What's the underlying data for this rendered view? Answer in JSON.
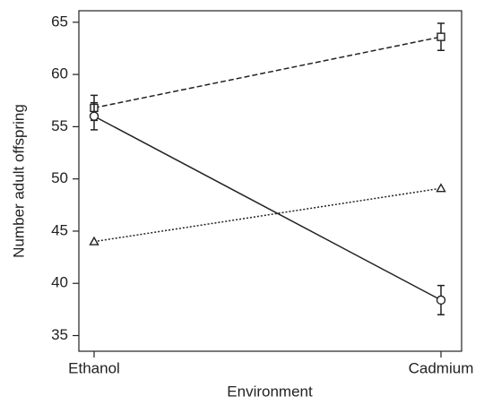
{
  "chart_data": {
    "type": "line",
    "x_label": "Environment",
    "y_label": "Number adult offspring",
    "categories": [
      "Ethanol",
      "Cadmium"
    ],
    "series": [
      {
        "color": "#222222",
        "marker": "square",
        "dash": "dashed",
        "values": [
          56.8,
          63.6
        ],
        "errors": [
          1.2,
          1.3
        ]
      },
      {
        "color": "#222222",
        "marker": "circle",
        "dash": "solid",
        "values": [
          56.0,
          38.4
        ],
        "errors": [
          1.3,
          1.4
        ]
      },
      {
        "color": "#222222",
        "marker": "triangle",
        "dash": "dotted",
        "values": [
          44.0,
          49.1
        ]
      }
    ],
    "ylim": [
      33.5,
      66.1
    ],
    "yticks": [
      35,
      40,
      45,
      50,
      55,
      60,
      65
    ]
  }
}
